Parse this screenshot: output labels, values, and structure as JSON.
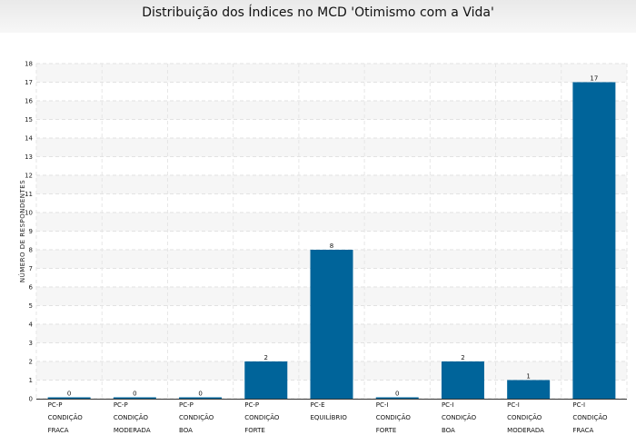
{
  "chart_data": {
    "type": "bar",
    "title": "Distribuição dos Índices no MCD 'Otimismo com a Vida'",
    "xlabel": "",
    "ylabel": "NÚMERO DE RESPONDENTES",
    "ylim": [
      0,
      18
    ],
    "yticks": [
      "0",
      "1",
      "2",
      "3",
      "4",
      "5",
      "6",
      "7",
      "8",
      "9",
      "10",
      "11",
      "12",
      "13",
      "14",
      "15",
      "16",
      "17",
      "18"
    ],
    "categories": [
      [
        "PC-P",
        "CONDIÇÃO",
        "FRACA"
      ],
      [
        "PC-P",
        "CONDIÇÃO",
        "MODERADA"
      ],
      [
        "PC-P",
        "CONDIÇÃO",
        "BOA"
      ],
      [
        "PC-P",
        "CONDIÇÃO",
        "FORTE"
      ],
      [
        "PC-E",
        "EQUILÍBRIO",
        ""
      ],
      [
        "PC-I",
        "CONDIÇÃO",
        "FORTE"
      ],
      [
        "PC-I",
        "CONDIÇÃO",
        "BOA"
      ],
      [
        "PC-I",
        "CONDIÇÃO",
        "MODERADA"
      ],
      [
        "PC-I",
        "CONDIÇÃO",
        "FRACA"
      ]
    ],
    "values": [
      0,
      0,
      0,
      2,
      8,
      0,
      2,
      1,
      17
    ],
    "data_labels": [
      "0",
      "0",
      "0",
      "2",
      "8",
      "0",
      "2",
      "1",
      "17"
    ],
    "bar_color": "#00649a",
    "grid": true,
    "legend": "none"
  }
}
